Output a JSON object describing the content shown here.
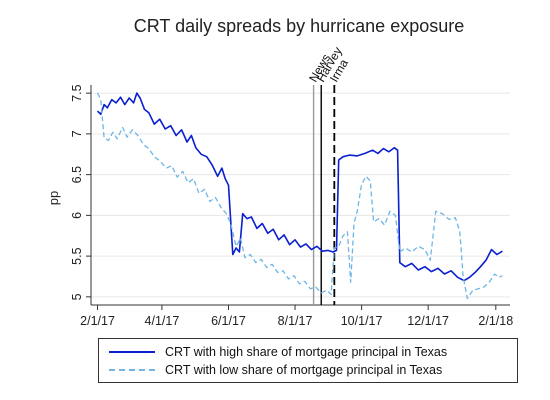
{
  "chart_data": {
    "type": "line",
    "title": "CRT daily spreads by hurricane exposure",
    "xlabel": "",
    "ylabel": "pp",
    "ylim": [
      4.9,
      7.6
    ],
    "yticks": [
      5,
      5.5,
      6,
      6.5,
      7,
      7.5
    ],
    "xticks": [
      "2/1/17",
      "4/1/17",
      "6/1/17",
      "8/1/17",
      "10/1/17",
      "12/1/17",
      "2/1/18"
    ],
    "grid": true,
    "legend_position": "bottom",
    "events": [
      {
        "label": "News",
        "x": "2017-08-18",
        "color": "#9a9a9a",
        "style": "solid"
      },
      {
        "label": "Harvey",
        "x": "2017-08-25",
        "color": "#000000",
        "style": "solid"
      },
      {
        "label": "Irma",
        "x": "2017-09-06",
        "color": "#000000",
        "style": "dashed"
      }
    ],
    "series": [
      {
        "name": "CRT with high share of mortgage principal in Texas",
        "color": "#0a1fcf",
        "style": "solid",
        "points": [
          [
            "2017-02-01",
            7.28
          ],
          [
            "2017-02-04",
            7.24
          ],
          [
            "2017-02-07",
            7.36
          ],
          [
            "2017-02-10",
            7.32
          ],
          [
            "2017-02-14",
            7.42
          ],
          [
            "2017-02-18",
            7.38
          ],
          [
            "2017-02-22",
            7.45
          ],
          [
            "2017-02-26",
            7.36
          ],
          [
            "2017-03-02",
            7.44
          ],
          [
            "2017-03-06",
            7.38
          ],
          [
            "2017-03-09",
            7.5
          ],
          [
            "2017-03-12",
            7.44
          ],
          [
            "2017-03-16",
            7.3
          ],
          [
            "2017-03-20",
            7.26
          ],
          [
            "2017-03-25",
            7.12
          ],
          [
            "2017-03-30",
            7.18
          ],
          [
            "2017-04-04",
            7.06
          ],
          [
            "2017-04-09",
            7.1
          ],
          [
            "2017-04-14",
            6.98
          ],
          [
            "2017-04-19",
            7.05
          ],
          [
            "2017-04-24",
            6.9
          ],
          [
            "2017-04-28",
            6.98
          ],
          [
            "2017-05-02",
            6.83
          ],
          [
            "2017-05-07",
            6.75
          ],
          [
            "2017-05-12",
            6.72
          ],
          [
            "2017-05-17",
            6.62
          ],
          [
            "2017-05-22",
            6.48
          ],
          [
            "2017-05-26",
            6.58
          ],
          [
            "2017-05-29",
            6.45
          ],
          [
            "2017-06-01",
            6.37
          ],
          [
            "2017-06-05",
            5.52
          ],
          [
            "2017-06-08",
            5.6
          ],
          [
            "2017-06-11",
            5.55
          ],
          [
            "2017-06-14",
            6.02
          ],
          [
            "2017-06-18",
            5.96
          ],
          [
            "2017-06-22",
            5.98
          ],
          [
            "2017-06-27",
            5.84
          ],
          [
            "2017-07-02",
            5.9
          ],
          [
            "2017-07-07",
            5.78
          ],
          [
            "2017-07-12",
            5.83
          ],
          [
            "2017-07-17",
            5.7
          ],
          [
            "2017-07-22",
            5.76
          ],
          [
            "2017-07-27",
            5.64
          ],
          [
            "2017-08-01",
            5.7
          ],
          [
            "2017-08-06",
            5.61
          ],
          [
            "2017-08-11",
            5.65
          ],
          [
            "2017-08-16",
            5.58
          ],
          [
            "2017-08-21",
            5.62
          ],
          [
            "2017-08-26",
            5.56
          ],
          [
            "2017-08-31",
            5.57
          ],
          [
            "2017-09-05",
            5.55
          ],
          [
            "2017-09-08",
            5.57
          ],
          [
            "2017-09-10",
            6.68
          ],
          [
            "2017-09-14",
            6.72
          ],
          [
            "2017-09-20",
            6.74
          ],
          [
            "2017-09-27",
            6.73
          ],
          [
            "2017-10-04",
            6.76
          ],
          [
            "2017-10-11",
            6.8
          ],
          [
            "2017-10-16",
            6.76
          ],
          [
            "2017-10-21",
            6.82
          ],
          [
            "2017-10-26",
            6.78
          ],
          [
            "2017-10-31",
            6.83
          ],
          [
            "2017-11-03",
            6.8
          ],
          [
            "2017-11-05",
            5.42
          ],
          [
            "2017-11-10",
            5.37
          ],
          [
            "2017-11-16",
            5.41
          ],
          [
            "2017-11-22",
            5.33
          ],
          [
            "2017-11-28",
            5.37
          ],
          [
            "2017-12-04",
            5.31
          ],
          [
            "2017-12-10",
            5.35
          ],
          [
            "2017-12-16",
            5.28
          ],
          [
            "2017-12-22",
            5.32
          ],
          [
            "2017-12-28",
            5.24
          ],
          [
            "2018-01-03",
            5.2
          ],
          [
            "2018-01-08",
            5.24
          ],
          [
            "2018-01-13",
            5.3
          ],
          [
            "2018-01-18",
            5.37
          ],
          [
            "2018-01-23",
            5.45
          ],
          [
            "2018-01-28",
            5.58
          ],
          [
            "2018-02-02",
            5.52
          ],
          [
            "2018-02-07",
            5.56
          ]
        ]
      },
      {
        "name": "CRT with low share of mortgage principal in Texas",
        "color": "#6fb6e6",
        "style": "dashed",
        "points": [
          [
            "2017-02-01",
            7.5
          ],
          [
            "2017-02-04",
            7.42
          ],
          [
            "2017-02-07",
            6.95
          ],
          [
            "2017-02-11",
            6.92
          ],
          [
            "2017-02-15",
            7.02
          ],
          [
            "2017-02-19",
            6.94
          ],
          [
            "2017-02-24",
            7.08
          ],
          [
            "2017-02-28",
            6.96
          ],
          [
            "2017-03-05",
            7.05
          ],
          [
            "2017-03-10",
            6.98
          ],
          [
            "2017-03-15",
            6.87
          ],
          [
            "2017-03-20",
            6.82
          ],
          [
            "2017-03-25",
            6.72
          ],
          [
            "2017-03-30",
            6.67
          ],
          [
            "2017-04-05",
            6.58
          ],
          [
            "2017-04-10",
            6.61
          ],
          [
            "2017-04-15",
            6.47
          ],
          [
            "2017-04-20",
            6.54
          ],
          [
            "2017-04-25",
            6.4
          ],
          [
            "2017-04-30",
            6.45
          ],
          [
            "2017-05-05",
            6.27
          ],
          [
            "2017-05-10",
            6.32
          ],
          [
            "2017-05-15",
            6.17
          ],
          [
            "2017-05-20",
            6.22
          ],
          [
            "2017-05-25",
            6.1
          ],
          [
            "2017-05-30",
            6.02
          ],
          [
            "2017-06-03",
            5.9
          ],
          [
            "2017-06-08",
            5.62
          ],
          [
            "2017-06-12",
            5.72
          ],
          [
            "2017-06-16",
            5.48
          ],
          [
            "2017-06-21",
            5.52
          ],
          [
            "2017-06-26",
            5.42
          ],
          [
            "2017-07-01",
            5.46
          ],
          [
            "2017-07-06",
            5.36
          ],
          [
            "2017-07-11",
            5.4
          ],
          [
            "2017-07-16",
            5.3
          ],
          [
            "2017-07-21",
            5.32
          ],
          [
            "2017-07-26",
            5.22
          ],
          [
            "2017-07-31",
            5.26
          ],
          [
            "2017-08-05",
            5.16
          ],
          [
            "2017-08-10",
            5.19
          ],
          [
            "2017-08-15",
            5.1
          ],
          [
            "2017-08-20",
            5.12
          ],
          [
            "2017-08-25",
            5.05
          ],
          [
            "2017-08-30",
            5.08
          ],
          [
            "2017-09-03",
            5.03
          ],
          [
            "2017-09-06",
            5.6
          ],
          [
            "2017-09-10",
            5.62
          ],
          [
            "2017-09-14",
            5.75
          ],
          [
            "2017-09-18",
            5.8
          ],
          [
            "2017-09-21",
            5.18
          ],
          [
            "2017-09-24",
            5.9
          ],
          [
            "2017-09-27",
            6.05
          ],
          [
            "2017-10-01",
            6.38
          ],
          [
            "2017-10-05",
            6.48
          ],
          [
            "2017-10-09",
            6.42
          ],
          [
            "2017-10-12",
            5.92
          ],
          [
            "2017-10-17",
            5.96
          ],
          [
            "2017-10-22",
            5.88
          ],
          [
            "2017-10-27",
            6.05
          ],
          [
            "2017-11-01",
            6.0
          ],
          [
            "2017-11-05",
            5.55
          ],
          [
            "2017-11-10",
            5.6
          ],
          [
            "2017-11-16",
            5.55
          ],
          [
            "2017-11-22",
            5.62
          ],
          [
            "2017-11-28",
            5.58
          ],
          [
            "2017-12-03",
            5.45
          ],
          [
            "2017-12-08",
            6.05
          ],
          [
            "2017-12-14",
            6.02
          ],
          [
            "2017-12-20",
            5.95
          ],
          [
            "2017-12-26",
            5.97
          ],
          [
            "2017-12-30",
            5.8
          ],
          [
            "2018-01-02",
            5.25
          ],
          [
            "2018-01-06",
            4.98
          ],
          [
            "2018-01-11",
            5.08
          ],
          [
            "2018-01-16",
            5.1
          ],
          [
            "2018-01-21",
            5.12
          ],
          [
            "2018-01-26",
            5.18
          ],
          [
            "2018-01-31",
            5.28
          ],
          [
            "2018-02-04",
            5.24
          ],
          [
            "2018-02-07",
            5.26
          ]
        ]
      }
    ]
  }
}
